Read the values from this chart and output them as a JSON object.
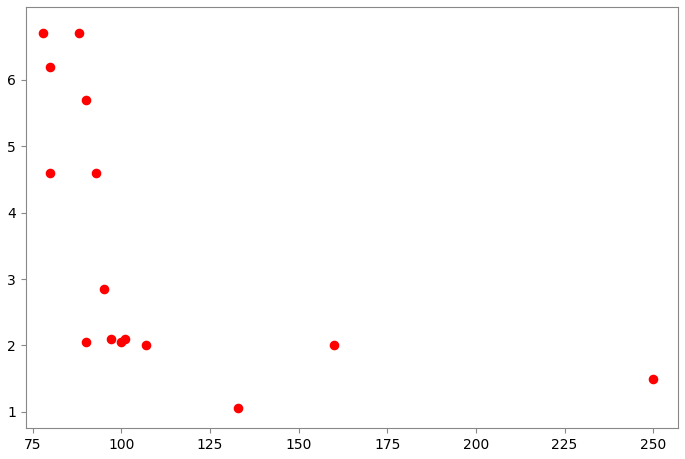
{
  "x": [
    78,
    80,
    88,
    90,
    80,
    93,
    95,
    90,
    97,
    100,
    101,
    107,
    133,
    160,
    250
  ],
  "y": [
    6.7,
    6.2,
    6.7,
    5.7,
    4.6,
    4.6,
    2.85,
    2.05,
    2.1,
    2.05,
    2.1,
    2.0,
    1.05,
    2.0,
    1.5
  ],
  "color": "#ff0000",
  "marker": "o",
  "markersize": 35,
  "xlim": [
    73,
    257
  ],
  "ylim": [
    0.75,
    7.1
  ],
  "xticks": [
    75,
    100,
    125,
    150,
    175,
    200,
    225,
    250
  ],
  "yticks": [
    1,
    2,
    3,
    4,
    5,
    6
  ],
  "background_color": "#ffffff",
  "grid": false,
  "figsize": [
    6.85,
    4.59
  ],
  "dpi": 100
}
